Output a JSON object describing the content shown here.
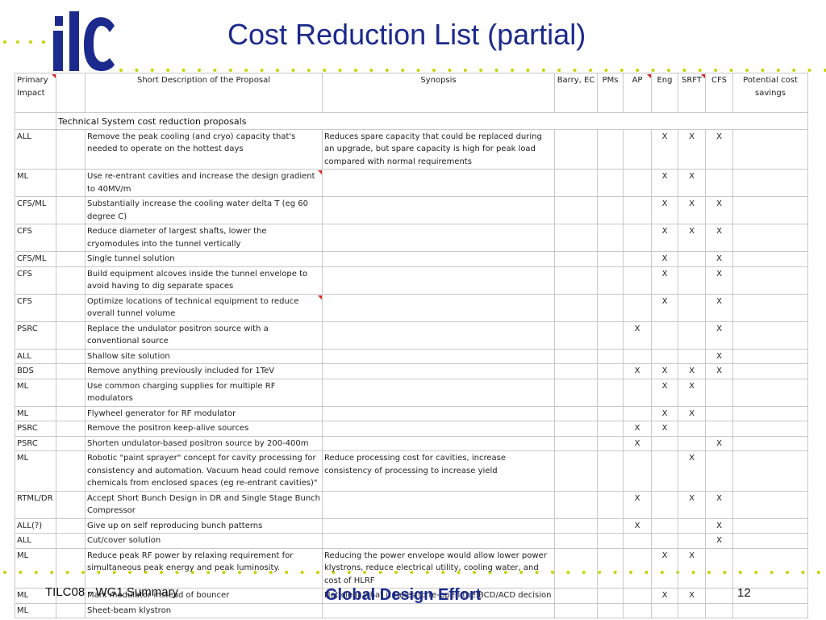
{
  "slide": {
    "title": "Cost Reduction List (partial)",
    "footer_left": "TILC08 - WG1 Summary",
    "footer_center": "Global Design Effort",
    "page_number": "12",
    "logo_text": "ilc",
    "accent_color": "#1b2a8c",
    "dot_color": "#c8d400"
  },
  "table": {
    "headers": {
      "primary_impact": "Primary Impact",
      "short_description": "Short Description of the Proposal",
      "synopsis": "Synopsis",
      "barry_ec": "Barry, EC",
      "pms": "PMs",
      "ap": "AP",
      "eng": "Eng",
      "srft": "SRFT",
      "cfs": "CFS",
      "potential_savings": "Potential cost savings"
    },
    "section_label": "Technical System cost reduction proposals",
    "rows": [
      {
        "impact": "ALL",
        "desc": "Remove the peak cooling (and cryo) capacity that's needed to operate on the hottest days",
        "synopsis": "Reduces spare capacity that could be replaced during an upgrade, but spare capacity is high for peak load compared with normal requirements",
        "barry": "",
        "pms": "",
        "ap": "",
        "eng": "X",
        "srft": "X",
        "cfs": "X"
      },
      {
        "impact": "ML",
        "desc": "Use re-entrant cavities and increase the design gradient to 40MV/m",
        "synopsis": "",
        "barry": "",
        "pms": "",
        "ap": "",
        "eng": "X",
        "srft": "X",
        "cfs": ""
      },
      {
        "impact": "CFS/ML",
        "desc": "Substantially increase the cooling water delta T (eg 60 degree C)",
        "synopsis": "",
        "barry": "",
        "pms": "",
        "ap": "",
        "eng": "X",
        "srft": "X",
        "cfs": "X"
      },
      {
        "impact": "CFS",
        "desc": "Reduce diameter of largest shafts, lower the cryomodules into the tunnel vertically",
        "synopsis": "",
        "barry": "",
        "pms": "",
        "ap": "",
        "eng": "X",
        "srft": "X",
        "cfs": "X"
      },
      {
        "impact": "CFS/ML",
        "desc": "Single tunnel solution",
        "synopsis": "",
        "barry": "",
        "pms": "",
        "ap": "",
        "eng": "X",
        "srft": "",
        "cfs": "X"
      },
      {
        "impact": "CFS",
        "desc": "Build equipment alcoves inside the tunnel envelope to avoid having to dig separate spaces",
        "synopsis": "",
        "barry": "",
        "pms": "",
        "ap": "",
        "eng": "X",
        "srft": "",
        "cfs": "X"
      },
      {
        "impact": "CFS",
        "desc": "Optimize locations of technical equipment to reduce overall tunnel volume",
        "synopsis": "",
        "barry": "",
        "pms": "",
        "ap": "",
        "eng": "X",
        "srft": "",
        "cfs": "X"
      },
      {
        "impact": "PSRC",
        "desc": "Replace the undulator positron source with a conventional source",
        "synopsis": "",
        "barry": "",
        "pms": "",
        "ap": "X",
        "eng": "",
        "srft": "",
        "cfs": "X"
      },
      {
        "impact": "ALL",
        "desc": "Shallow site solution",
        "synopsis": "",
        "barry": "",
        "pms": "",
        "ap": "",
        "eng": "",
        "srft": "",
        "cfs": "X"
      },
      {
        "impact": "BDS",
        "desc": "Remove anything previously included for 1TeV",
        "synopsis": "",
        "barry": "",
        "pms": "",
        "ap": "X",
        "eng": "X",
        "srft": "X",
        "cfs": "X"
      },
      {
        "impact": "ML",
        "desc": "Use common charging supplies for multiple RF modulators",
        "synopsis": "",
        "barry": "",
        "pms": "",
        "ap": "",
        "eng": "X",
        "srft": "X",
        "cfs": ""
      },
      {
        "impact": "ML",
        "desc": "Flywheel generator for RF modulator",
        "synopsis": "",
        "barry": "",
        "pms": "",
        "ap": "",
        "eng": "X",
        "srft": "X",
        "cfs": ""
      },
      {
        "impact": "PSRC",
        "desc": "Remove the positron keep-alive sources",
        "synopsis": "",
        "barry": "",
        "pms": "",
        "ap": "X",
        "eng": "X",
        "srft": "",
        "cfs": ""
      },
      {
        "impact": "PSRC",
        "desc": "Shorten undulator-based positron source by 200-400m",
        "synopsis": "",
        "barry": "",
        "pms": "",
        "ap": "X",
        "eng": "",
        "srft": "",
        "cfs": "X"
      },
      {
        "impact": "ML",
        "desc": "Robotic \"paint sprayer\" concept for cavity processing for consistency and automation. Vacuum head could remove chemicals from enclosed spaces (eg re-entrant cavities)\"",
        "synopsis": "Reduce processing cost for cavities, increase consistency of processing to increase yield",
        "barry": "",
        "pms": "",
        "ap": "",
        "eng": "",
        "srft": "X",
        "cfs": ""
      },
      {
        "impact": "RTML/DR",
        "desc": "Accept Short Bunch Design in DR and Single Stage Bunch Compressor",
        "synopsis": "",
        "barry": "",
        "pms": "",
        "ap": "X",
        "eng": "",
        "srft": "X",
        "cfs": "X"
      },
      {
        "impact": "ALL(?)",
        "desc": "Give up on self reproducing bunch patterns",
        "synopsis": "",
        "barry": "",
        "pms": "",
        "ap": "X",
        "eng": "",
        "srft": "",
        "cfs": "X"
      },
      {
        "impact": "ALL",
        "desc": "Cut/cover solution",
        "synopsis": "",
        "barry": "",
        "pms": "",
        "ap": "",
        "eng": "",
        "srft": "",
        "cfs": "X"
      },
      {
        "impact": "ML",
        "desc": "Reduce peak RF power by relaxing requirement for simultaneous peak energy and peak luminosity.",
        "synopsis": "Reducing the power envelope would allow lower power klystrons, reduce electrical utility, cooling water, and cost of HLRF",
        "barry": "",
        "pms": "",
        "ap": "",
        "eng": "X",
        "srft": "X",
        "cfs": ""
      },
      {
        "impact": "ML",
        "desc": "Marx modulator instead of bouncer",
        "synopsis": "Not clear what it takes to re-open the BCD/ACD decision",
        "barry": "",
        "pms": "",
        "ap": "",
        "eng": "X",
        "srft": "X",
        "cfs": ""
      },
      {
        "impact": "ML",
        "desc": "Sheet-beam klystron",
        "synopsis": "",
        "barry": "",
        "pms": "",
        "ap": "",
        "eng": "",
        "srft": "",
        "cfs": ""
      }
    ]
  }
}
